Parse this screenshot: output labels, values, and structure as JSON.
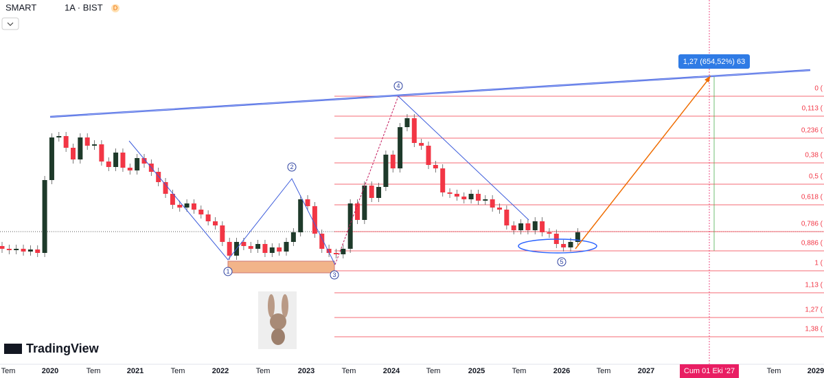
{
  "header": {
    "symbol": "SMART",
    "interval": "1A · BIST",
    "badge": "D"
  },
  "time_axis": {
    "labels": [
      "Tem",
      "2020",
      "Tem",
      "2021",
      "Tem",
      "2022",
      "Tem",
      "2023",
      "Tem",
      "2024",
      "Tem",
      "2025",
      "Tem",
      "2026",
      "Tem",
      "2027",
      "Tem",
      "2029"
    ],
    "crosshair_label": "Cum 01 Eki '27"
  },
  "fib_levels": [
    "0 (",
    "0,113 (",
    "0,236 (",
    "0,38 (",
    "0,5 (",
    "0,618 (",
    "0,786 (",
    "0,886 (",
    "1 (",
    "1,13 (",
    "1,27 (",
    "1,38 ("
  ],
  "target_label": "1,27 (654,52%) 63",
  "wave_labels": [
    "1",
    "2",
    "3",
    "4",
    "5"
  ],
  "logo": "TradingView"
}
